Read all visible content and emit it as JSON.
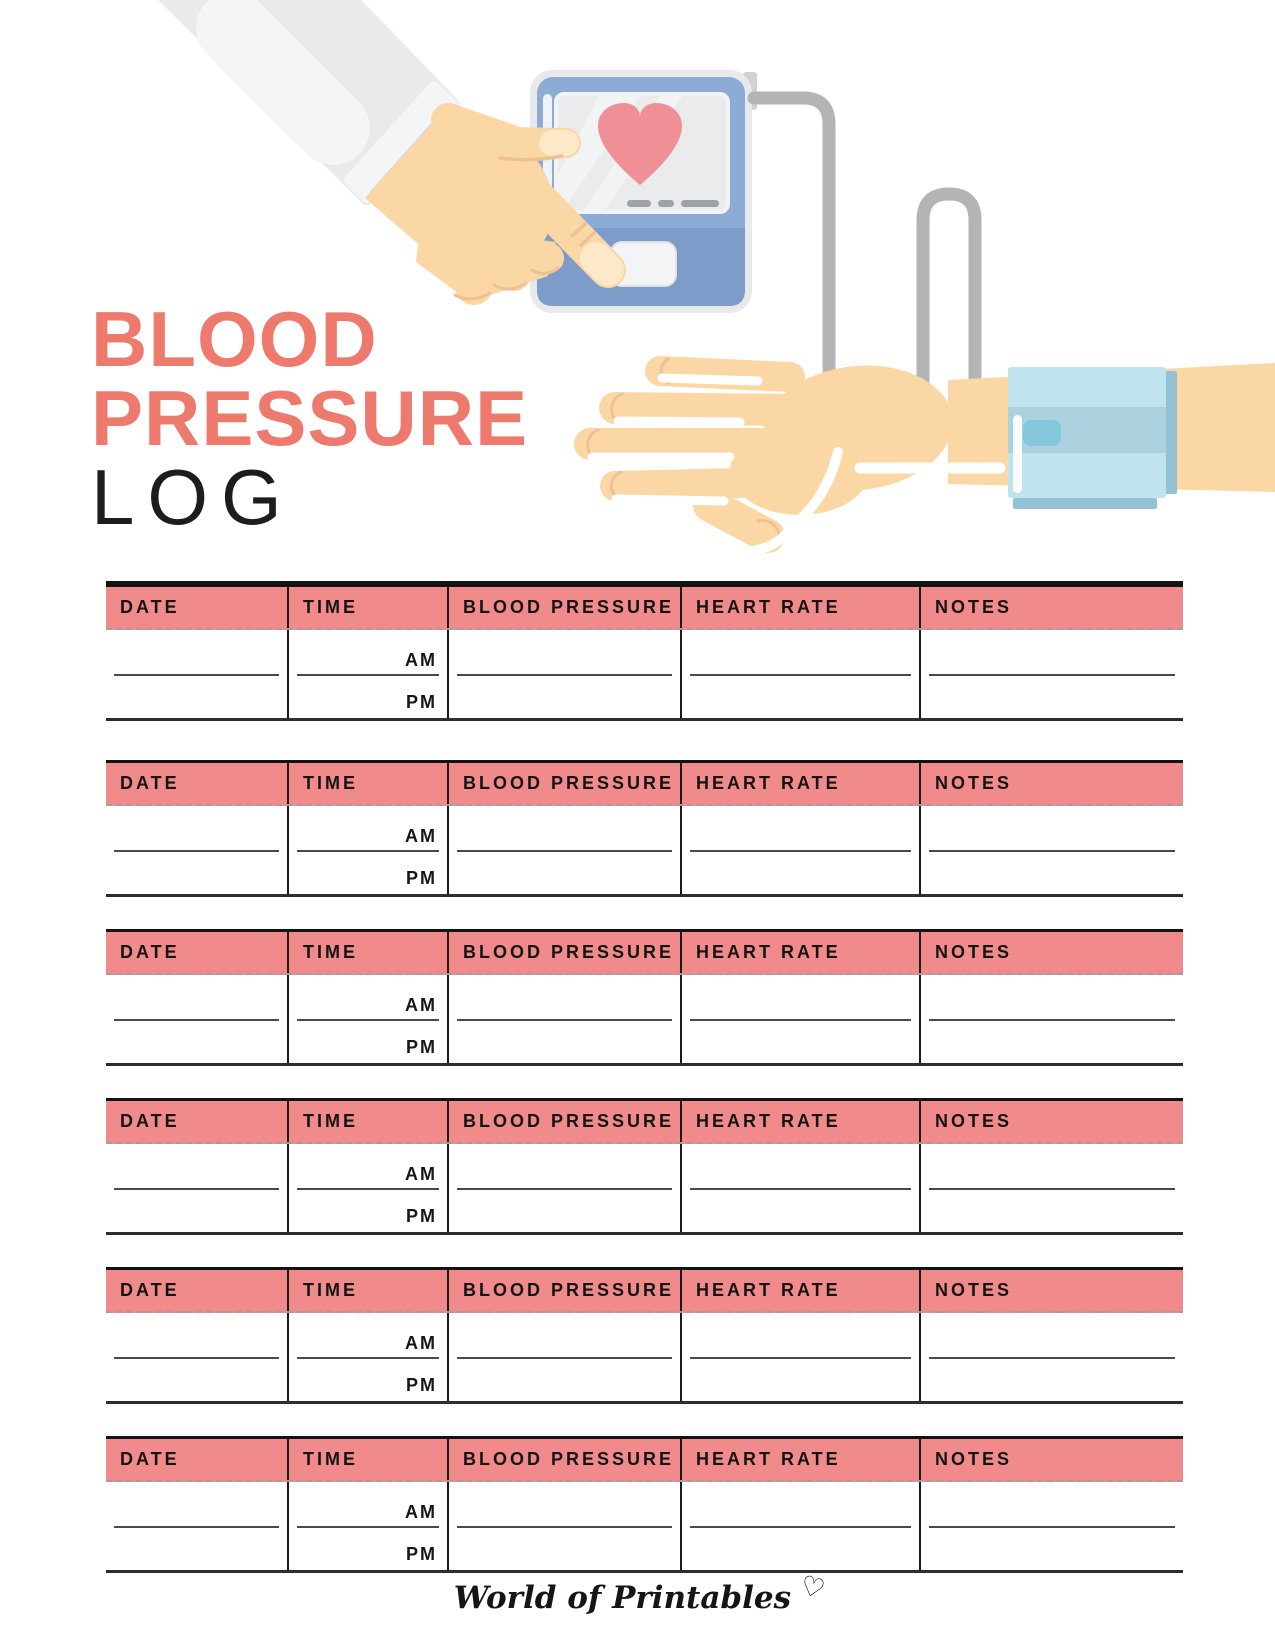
{
  "title": {
    "lines": [
      "BLOOD",
      "PRESSURE",
      "LOG"
    ]
  },
  "log_table": {
    "columns": [
      "DATE",
      "TIME",
      "BLOOD PRESSURE",
      "HEART RATE",
      "NOTES"
    ],
    "time_slots": [
      "AM",
      "PM"
    ],
    "section_count": 6
  },
  "footer": {
    "brand": "World of Printables",
    "heart": "♡"
  },
  "theme": {
    "paper": "#ffffff",
    "accent": "#ee796d",
    "header_pink": "#f18b8b",
    "ink": "#1a1a1a",
    "line_gray": "#4b4b4b",
    "dash_gray": "#a39d9b",
    "monitor_frame": "#e8e9eb",
    "monitor_blue": "#8cacd6",
    "monitor_blue_dark": "#7e9cc9",
    "screen_gray": "#e9ebed",
    "heart_pink": "#ef9097",
    "screen_dash": "#9ea2a7",
    "tube_gray": "#b3b4b6",
    "sleeve": "#e9eaec",
    "sleeve_light": "#f4f5f7",
    "sleeve_edge": "#d7d9dc",
    "skin": "#fbd7a6",
    "skin_light": "#fde8c8",
    "skin_line": "#efc091",
    "cuff_blue": "#bfe4f0",
    "cuff_band": "#abd2de",
    "cuff_fold": "#93c3d3",
    "cuff_connector": "#84c6db"
  }
}
